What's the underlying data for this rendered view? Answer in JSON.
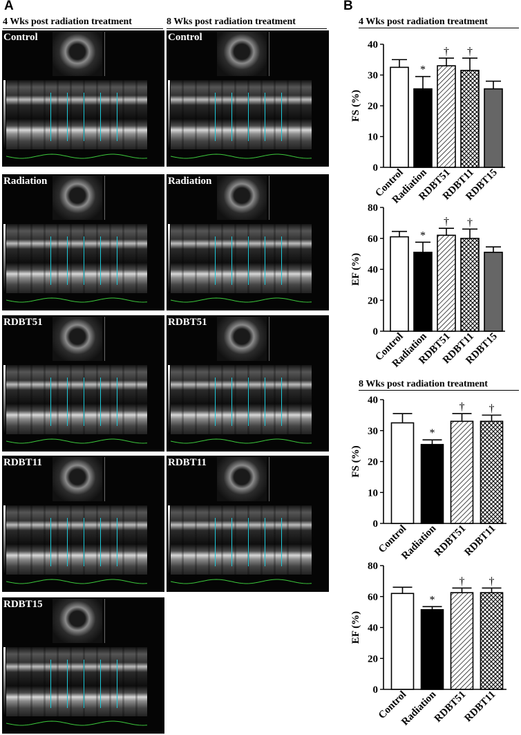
{
  "panel_a": {
    "letter": "A",
    "col_headers": [
      "4 Wks post radiation treatment",
      "8 Wks post radiation treatment"
    ],
    "col4_labels": [
      "Control",
      "Radiation",
      "RDBT51",
      "RDBT11",
      "RDBT15"
    ],
    "col8_labels": [
      "Control",
      "Radiation",
      "RDBT51",
      "RDBT11"
    ]
  },
  "panel_b": {
    "letter": "B",
    "section_headers": [
      "4 Wks post radiation treatment",
      "8 Wks post radiation treatment"
    ]
  },
  "chart_data": [
    {
      "type": "bar",
      "title": "",
      "xlabel": "",
      "ylabel": "FS (%)",
      "ylim": [
        0,
        40
      ],
      "yticks": [
        0,
        10,
        20,
        30,
        40
      ],
      "categories": [
        "Control",
        "Radiation",
        "RDBT51",
        "RDBT11",
        "RDBT15"
      ],
      "values": [
        32.5,
        25.5,
        33,
        31.5,
        25.5
      ],
      "errors": [
        2.5,
        4,
        2.5,
        4,
        2.5
      ],
      "annotations": [
        "",
        "*",
        "†",
        "†",
        ""
      ],
      "fills": [
        "white",
        "black",
        "diagonal-hatch",
        "crosshatch",
        "gray"
      ]
    },
    {
      "type": "bar",
      "title": "",
      "xlabel": "",
      "ylabel": "EF (%)",
      "ylim": [
        0,
        80
      ],
      "yticks": [
        0,
        20,
        40,
        60,
        80
      ],
      "categories": [
        "Control",
        "Radiation",
        "RDBT51",
        "RDBT11",
        "RDBT15"
      ],
      "values": [
        61,
        51,
        62,
        60,
        51
      ],
      "errors": [
        3.5,
        6.5,
        4.5,
        6,
        3.5
      ],
      "annotations": [
        "",
        "*",
        "†",
        "†",
        ""
      ],
      "fills": [
        "white",
        "black",
        "diagonal-hatch",
        "crosshatch",
        "gray"
      ]
    },
    {
      "type": "bar",
      "title": "",
      "xlabel": "",
      "ylabel": "FS (%)",
      "ylim": [
        0,
        40
      ],
      "yticks": [
        0,
        10,
        20,
        30,
        40
      ],
      "categories": [
        "Control",
        "Radiation",
        "RDBT51",
        "RDBT11"
      ],
      "values": [
        32.5,
        25.5,
        33,
        33
      ],
      "errors": [
        3,
        1.5,
        2.5,
        2
      ],
      "annotations": [
        "",
        "*",
        "†",
        "†"
      ],
      "fills": [
        "white",
        "black",
        "diagonal-hatch",
        "crosshatch"
      ]
    },
    {
      "type": "bar",
      "title": "",
      "xlabel": "",
      "ylabel": "EF (%)",
      "ylim": [
        0,
        80
      ],
      "yticks": [
        0,
        20,
        40,
        60,
        80
      ],
      "categories": [
        "Control",
        "Radiation",
        "RDBT51",
        "RDBT11"
      ],
      "values": [
        62,
        51.5,
        62.5,
        62.5
      ],
      "errors": [
        4,
        2,
        3,
        3
      ],
      "annotations": [
        "",
        "*",
        "†",
        "†"
      ],
      "fills": [
        "white",
        "black",
        "diagonal-hatch",
        "crosshatch"
      ]
    }
  ]
}
